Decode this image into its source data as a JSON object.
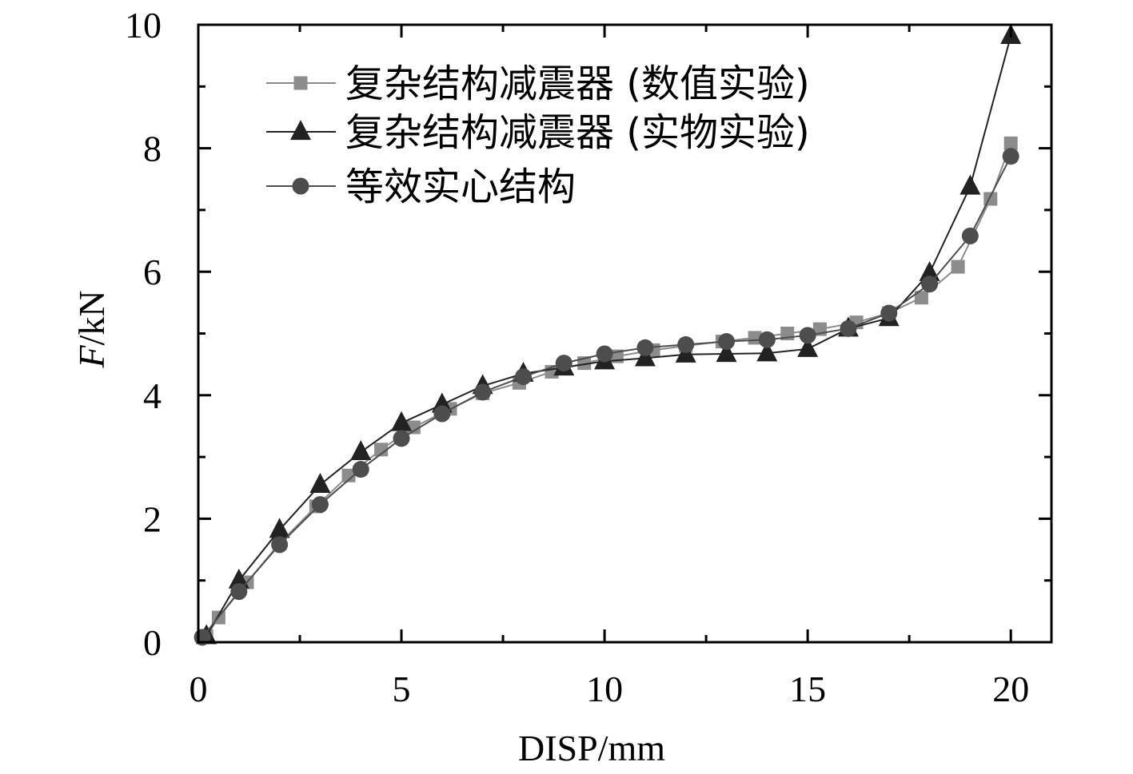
{
  "chart_data": {
    "type": "line",
    "title": "",
    "xlabel": "DISP/mm",
    "ylabel_italic": "F",
    "ylabel_rest": "/kN",
    "xlim": [
      0,
      21
    ],
    "ylim": [
      0,
      10
    ],
    "xticks": [
      0,
      5,
      10,
      15,
      20
    ],
    "yticks": [
      0,
      2,
      4,
      6,
      8,
      10
    ],
    "x_minor_step": 2.5,
    "y_minor_step": 1,
    "grid": false,
    "legend_position": "top-left",
    "series": [
      {
        "name": "复杂结构减震器 (数值实验)",
        "marker": "square",
        "color": "#8c8c8c",
        "x": [
          0.2,
          0.5,
          1.2,
          2.0,
          2.9,
          3.7,
          4.5,
          5.3,
          6.2,
          7.0,
          7.9,
          8.7,
          9.5,
          10.3,
          11.2,
          12.0,
          12.9,
          13.7,
          14.5,
          15.3,
          16.2,
          17.0,
          17.8,
          18.7,
          19.5,
          20.0
        ],
        "y": [
          0.1,
          0.4,
          0.97,
          1.6,
          2.2,
          2.7,
          3.12,
          3.48,
          3.78,
          4.03,
          4.2,
          4.38,
          4.52,
          4.63,
          4.73,
          4.8,
          4.87,
          4.93,
          5.0,
          5.07,
          5.18,
          5.33,
          5.58,
          6.08,
          7.18,
          8.08
        ]
      },
      {
        "name": "复杂结构减震器 (实物实验)",
        "marker": "triangle",
        "color": "#222222",
        "x": [
          0.2,
          1.0,
          2.0,
          3.0,
          4.0,
          5.0,
          6.0,
          7.0,
          8.0,
          9.0,
          10.0,
          11.0,
          12.0,
          13.0,
          14.0,
          15.0,
          16.0,
          17.0,
          18.0,
          19.0,
          20.0
        ],
        "y": [
          0.1,
          1.0,
          1.82,
          2.55,
          3.08,
          3.55,
          3.85,
          4.15,
          4.35,
          4.45,
          4.55,
          4.6,
          4.66,
          4.67,
          4.68,
          4.75,
          5.08,
          5.25,
          5.98,
          7.38,
          9.82
        ]
      },
      {
        "name": "等效实心结构",
        "marker": "circle",
        "color": "#4d4d4d",
        "x": [
          0.1,
          1.0,
          2.0,
          3.0,
          4.0,
          5.0,
          6.0,
          7.0,
          8.0,
          9.0,
          10.0,
          11.0,
          12.0,
          13.0,
          14.0,
          15.0,
          16.0,
          17.0,
          18.0,
          19.0,
          20.0
        ],
        "y": [
          0.08,
          0.82,
          1.58,
          2.23,
          2.8,
          3.3,
          3.7,
          4.05,
          4.3,
          4.52,
          4.67,
          4.77,
          4.82,
          4.87,
          4.9,
          4.97,
          5.08,
          5.33,
          5.8,
          6.58,
          7.87
        ]
      }
    ]
  }
}
